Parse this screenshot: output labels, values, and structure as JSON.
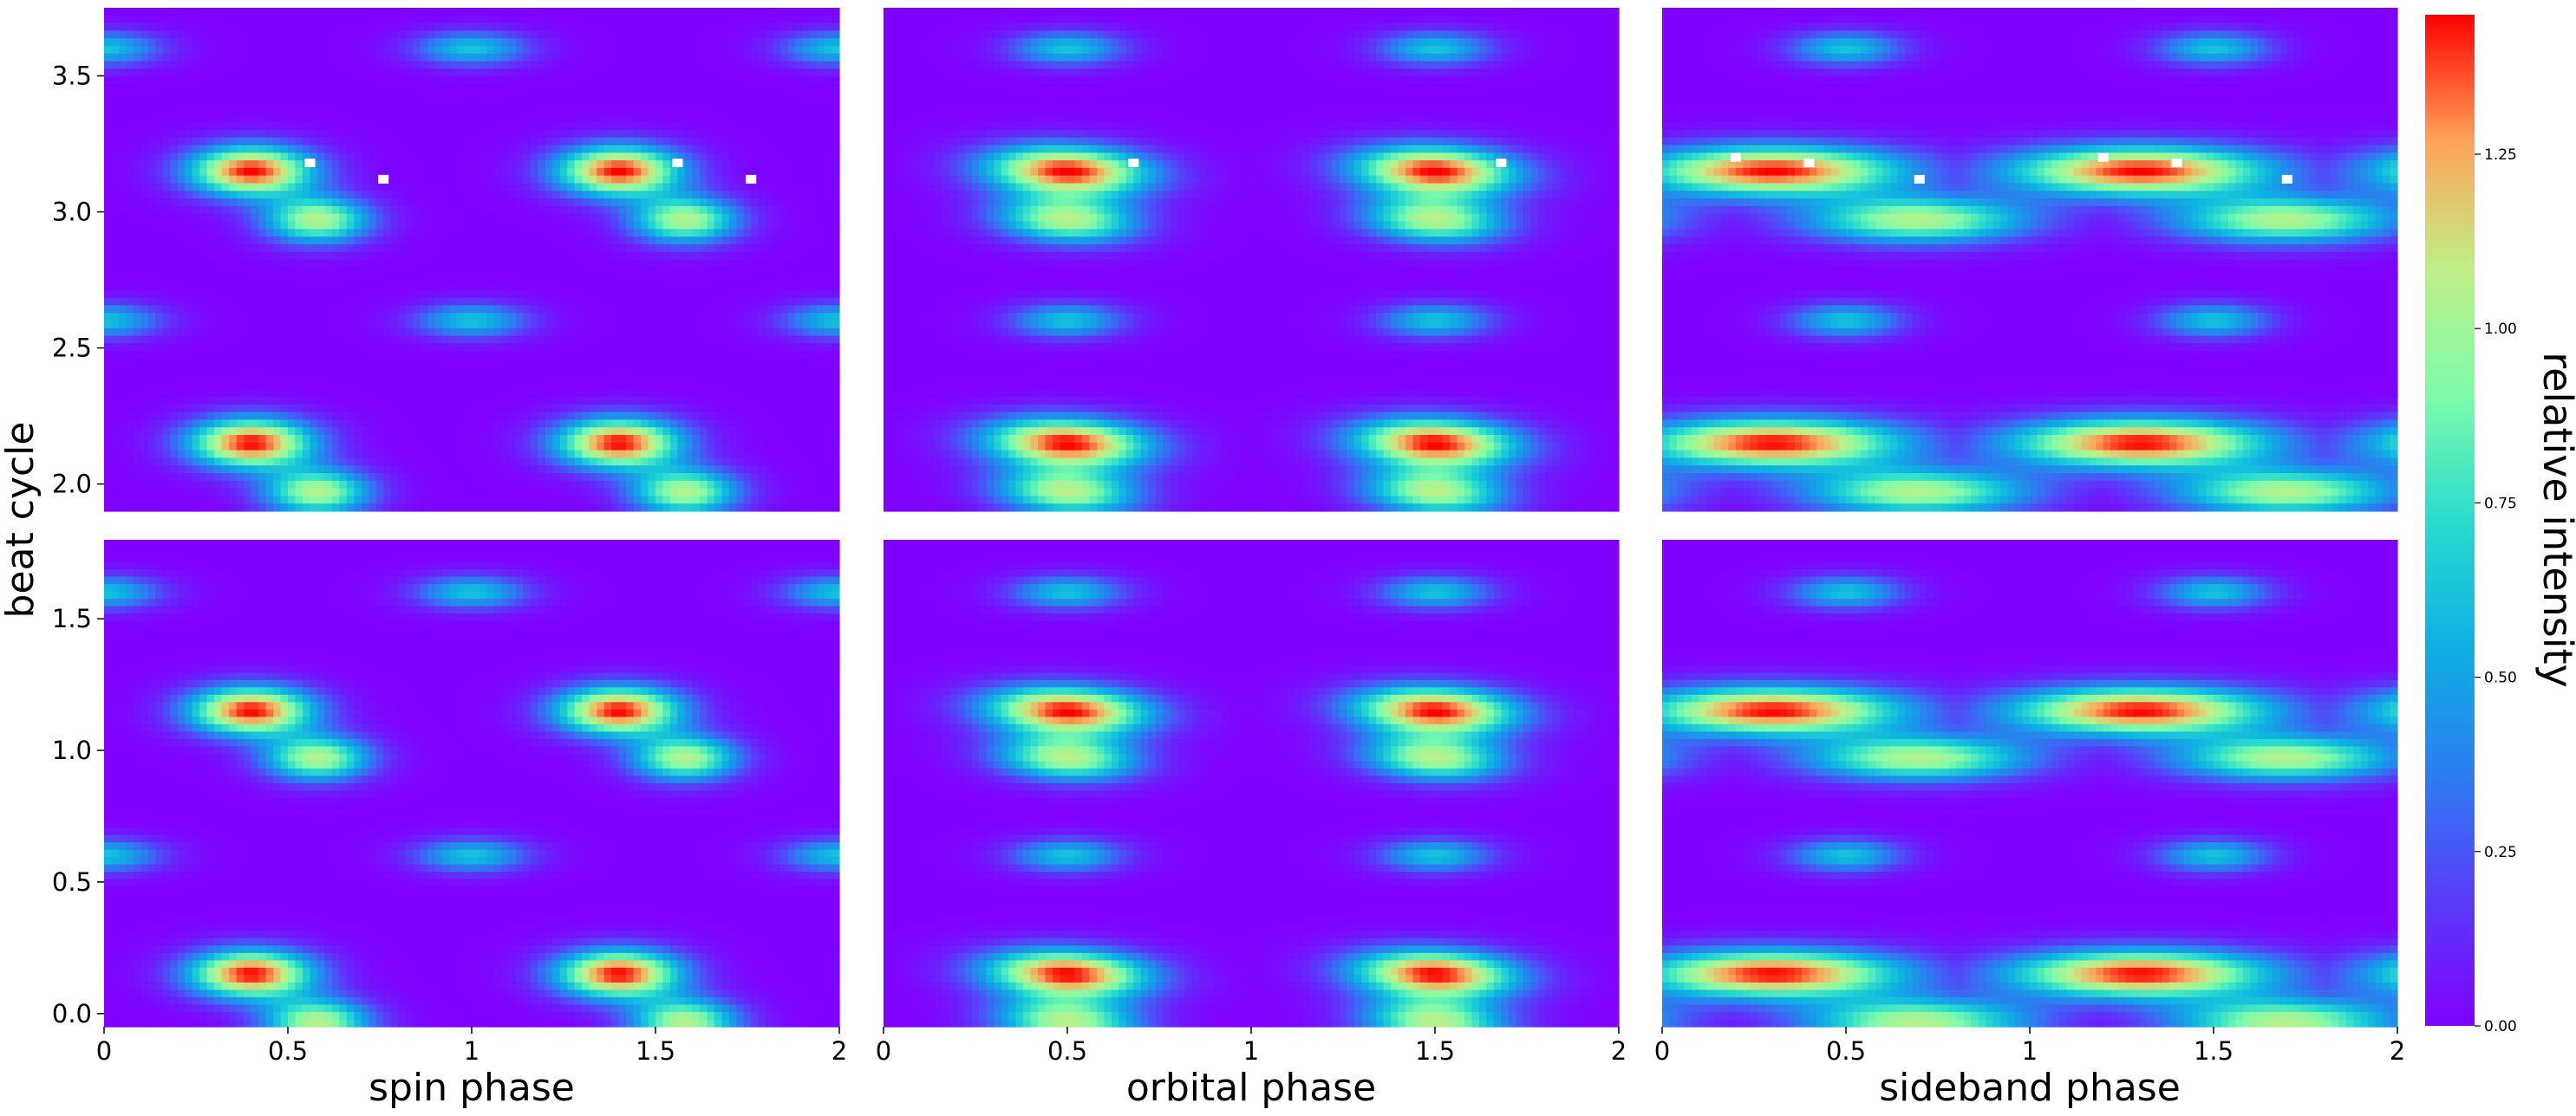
{
  "chart_data": [
    {
      "type": "heatmap",
      "panel": "top-left",
      "xlabel": "",
      "ylabel": "",
      "xlim": [
        0,
        2
      ],
      "ylim": [
        1.9,
        3.75
      ],
      "xticks": [],
      "yticks": [
        "2.0",
        "2.5",
        "3.0",
        "3.5"
      ],
      "bands": [
        2.15,
        3.15
      ],
      "secondary": [
        1.97,
        2.97
      ],
      "weak": [
        2.6,
        3.6
      ],
      "weak_offset": 0.0,
      "blob_shift": 0.4,
      "shear": 0.0,
      "elong": 1.0,
      "white_pixels": [
        [
          0.56,
          3.18
        ],
        [
          0.76,
          3.12
        ],
        [
          1.56,
          3.18
        ],
        [
          1.76,
          3.12
        ]
      ]
    },
    {
      "type": "heatmap",
      "panel": "top-middle",
      "xlabel": "",
      "ylabel": "",
      "xlim": [
        0,
        2
      ],
      "ylim": [
        1.9,
        3.75
      ],
      "xticks": [],
      "yticks": [],
      "bands": [
        2.15,
        3.15
      ],
      "secondary": [
        1.97,
        2.97
      ],
      "weak": [
        2.6,
        3.6
      ],
      "weak_offset": 0.5,
      "blob_shift": 0.5,
      "shear": -0.3,
      "elong": 1.3,
      "white_pixels": [
        [
          0.68,
          3.18
        ],
        [
          1.68,
          3.18
        ]
      ]
    },
    {
      "type": "heatmap",
      "panel": "top-right",
      "xlabel": "",
      "ylabel": "",
      "xlim": [
        0,
        2
      ],
      "ylim": [
        1.9,
        3.75
      ],
      "xticks": [],
      "yticks": [],
      "bands": [
        2.15,
        3.15
      ],
      "secondary": [
        1.97,
        2.97
      ],
      "weak": [
        2.6,
        3.6
      ],
      "weak_offset": 0.5,
      "blob_shift": 0.3,
      "shear": 0.0,
      "elong": 2.1,
      "white_pixels": [
        [
          0.2,
          3.2
        ],
        [
          0.4,
          3.18
        ],
        [
          0.7,
          3.12
        ],
        [
          1.2,
          3.2
        ],
        [
          1.4,
          3.18
        ],
        [
          1.7,
          3.12
        ]
      ]
    },
    {
      "type": "heatmap",
      "panel": "bottom-left",
      "xlabel": "spin phase",
      "ylabel": "",
      "xlim": [
        0,
        2
      ],
      "ylim": [
        -0.05,
        1.8
      ],
      "xticks": [
        "0",
        "0.5",
        "1",
        "1.5",
        "2"
      ],
      "yticks": [
        "0.0",
        "0.5",
        "1.0",
        "1.5"
      ],
      "bands": [
        0.15,
        1.15
      ],
      "secondary": [
        -0.03,
        0.97
      ],
      "weak": [
        0.6,
        1.6
      ],
      "weak_offset": 0.0,
      "blob_shift": 0.4,
      "shear": 0.0,
      "elong": 1.0,
      "white_pixels": []
    },
    {
      "type": "heatmap",
      "panel": "bottom-middle",
      "xlabel": "orbital phase",
      "ylabel": "",
      "xlim": [
        0,
        2
      ],
      "ylim": [
        -0.05,
        1.8
      ],
      "xticks": [
        "0",
        "0.5",
        "1",
        "1.5",
        "2"
      ],
      "yticks": [],
      "bands": [
        0.15,
        1.15
      ],
      "secondary": [
        -0.03,
        0.97
      ],
      "weak": [
        0.6,
        1.6
      ],
      "weak_offset": 0.5,
      "blob_shift": 0.5,
      "shear": -0.3,
      "elong": 1.3,
      "white_pixels": []
    },
    {
      "type": "heatmap",
      "panel": "bottom-right",
      "xlabel": "sideband phase",
      "ylabel": "",
      "xlim": [
        0,
        2
      ],
      "ylim": [
        -0.05,
        1.8
      ],
      "xticks": [
        "0",
        "0.5",
        "1",
        "1.5",
        "2"
      ],
      "yticks": [],
      "bands": [
        0.15,
        1.15
      ],
      "secondary": [
        -0.03,
        0.97
      ],
      "weak": [
        0.6,
        1.6
      ],
      "weak_offset": 0.5,
      "blob_shift": 0.3,
      "shear": 0.0,
      "elong": 2.1,
      "white_pixels": []
    }
  ],
  "shared_ylabel": "beat cycle",
  "colorbar": {
    "label": "relative intensity",
    "colormap": "rainbow",
    "range": [
      0,
      1.45
    ],
    "ticks": [
      "0.00",
      "0.25",
      "0.50",
      "0.75",
      "1.00",
      "1.25"
    ]
  }
}
